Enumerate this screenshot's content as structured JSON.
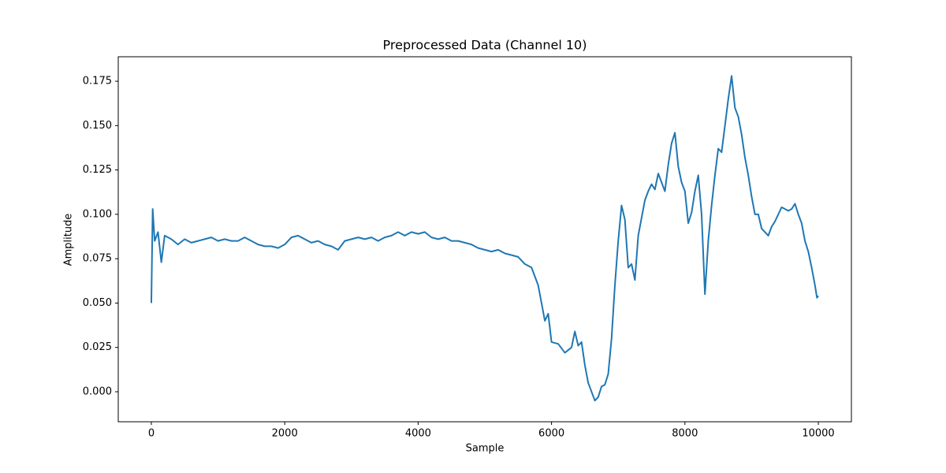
{
  "chart_data": {
    "type": "line",
    "title": "Preprocessed Data (Channel 10)",
    "x_label": "Sample",
    "y_label": "Amplitude",
    "color": "#1f77b4",
    "x": [
      0,
      20,
      50,
      100,
      150,
      200,
      300,
      400,
      500,
      600,
      700,
      800,
      900,
      1000,
      1100,
      1200,
      1300,
      1400,
      1500,
      1600,
      1700,
      1800,
      1900,
      2000,
      2100,
      2200,
      2300,
      2400,
      2500,
      2600,
      2700,
      2800,
      2900,
      3000,
      3100,
      3200,
      3300,
      3400,
      3500,
      3600,
      3700,
      3800,
      3900,
      4000,
      4100,
      4200,
      4300,
      4400,
      4500,
      4600,
      4700,
      4800,
      4900,
      5000,
      5100,
      5200,
      5300,
      5400,
      5500,
      5600,
      5700,
      5800,
      5850,
      5900,
      5950,
      6000,
      6100,
      6200,
      6300,
      6350,
      6400,
      6450,
      6500,
      6550,
      6600,
      6650,
      6700,
      6750,
      6800,
      6850,
      6900,
      6950,
      7000,
      7050,
      7100,
      7150,
      7200,
      7250,
      7300,
      7350,
      7400,
      7450,
      7500,
      7550,
      7600,
      7650,
      7700,
      7750,
      7800,
      7850,
      7900,
      7950,
      8000,
      8050,
      8100,
      8150,
      8200,
      8250,
      8300,
      8350,
      8400,
      8450,
      8500,
      8550,
      8600,
      8650,
      8700,
      8750,
      8800,
      8850,
      8900,
      8950,
      9000,
      9050,
      9100,
      9150,
      9200,
      9250,
      9300,
      9350,
      9400,
      9450,
      9500,
      9550,
      9600,
      9650,
      9700,
      9750,
      9800,
      9850,
      9900,
      9950,
      9980,
      10000
    ],
    "values": [
      0.05,
      0.103,
      0.085,
      0.09,
      0.073,
      0.088,
      0.086,
      0.083,
      0.086,
      0.084,
      0.085,
      0.086,
      0.087,
      0.085,
      0.086,
      0.085,
      0.085,
      0.087,
      0.085,
      0.083,
      0.082,
      0.082,
      0.081,
      0.083,
      0.087,
      0.088,
      0.086,
      0.084,
      0.085,
      0.083,
      0.082,
      0.08,
      0.085,
      0.086,
      0.087,
      0.086,
      0.087,
      0.085,
      0.087,
      0.088,
      0.09,
      0.088,
      0.09,
      0.089,
      0.09,
      0.087,
      0.086,
      0.087,
      0.085,
      0.085,
      0.084,
      0.083,
      0.081,
      0.08,
      0.079,
      0.08,
      0.078,
      0.077,
      0.076,
      0.072,
      0.07,
      0.06,
      0.05,
      0.04,
      0.044,
      0.028,
      0.027,
      0.022,
      0.025,
      0.034,
      0.026,
      0.028,
      0.015,
      0.005,
      0.0,
      -0.005,
      -0.003,
      0.003,
      0.004,
      0.01,
      0.03,
      0.06,
      0.085,
      0.105,
      0.097,
      0.07,
      0.072,
      0.063,
      0.088,
      0.098,
      0.108,
      0.113,
      0.117,
      0.114,
      0.123,
      0.118,
      0.113,
      0.128,
      0.14,
      0.146,
      0.127,
      0.118,
      0.113,
      0.095,
      0.101,
      0.113,
      0.122,
      0.1,
      0.055,
      0.085,
      0.105,
      0.122,
      0.137,
      0.135,
      0.15,
      0.165,
      0.178,
      0.16,
      0.155,
      0.145,
      0.132,
      0.122,
      0.11,
      0.1,
      0.1,
      0.092,
      0.09,
      0.088,
      0.093,
      0.096,
      0.1,
      0.104,
      0.103,
      0.102,
      0.103,
      0.106,
      0.1,
      0.095,
      0.085,
      0.079,
      0.07,
      0.06,
      0.053,
      0.054
    ],
    "xlim": [
      -496,
      10496
    ],
    "ylim": [
      -0.0169,
      0.1888
    ],
    "xticks": [
      0,
      2000,
      4000,
      6000,
      8000,
      10000
    ],
    "yticks": [
      {
        "value": 0,
        "label": "0.000"
      },
      0.025,
      {
        "value": 0.05,
        "label": "0.050"
      },
      0.075,
      {
        "value": 0.1,
        "label": "0.100"
      },
      0.125,
      {
        "value": 0.15,
        "label": "0.150"
      },
      0.175
    ],
    "grid": false
  }
}
